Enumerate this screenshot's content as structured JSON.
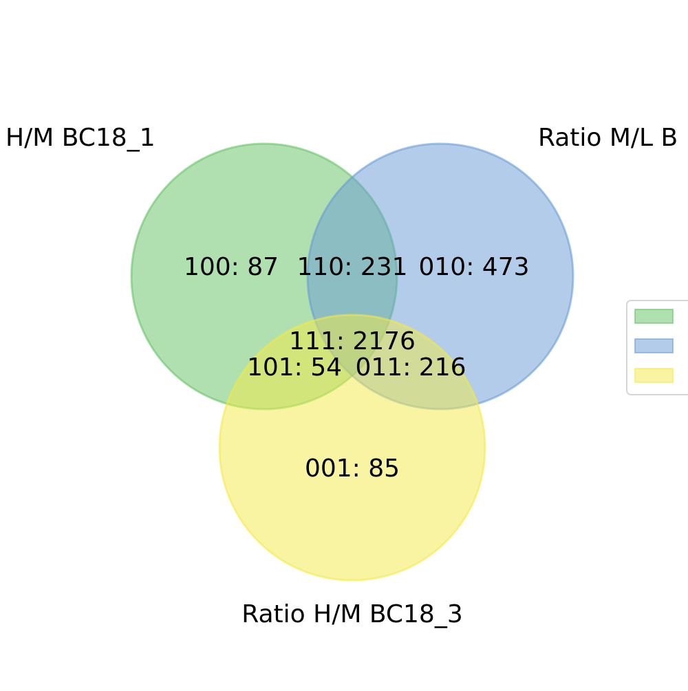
{
  "sets": [
    {
      "id": "set1",
      "label": "H/M BC18_1",
      "fill": "#61c161",
      "stroke": "#61c161"
    },
    {
      "id": "set2",
      "label": "Ratio M/L B",
      "fill": "#6599d6",
      "stroke": "#6599d6"
    },
    {
      "id": "set3",
      "label": "Ratio H/M BC18_3",
      "fill": "#f4ea46",
      "stroke": "#f4ea46"
    }
  ],
  "regions": [
    {
      "code": "100",
      "count": 87,
      "text": "100: 87"
    },
    {
      "code": "110",
      "count": 231,
      "text": "110: 231"
    },
    {
      "code": "010",
      "count": 473,
      "text": "010: 473"
    },
    {
      "code": "111",
      "count": 2176,
      "text": "111: 2176"
    },
    {
      "code": "101",
      "count": 54,
      "text": "101: 54"
    },
    {
      "code": "011",
      "count": 216,
      "text": "011: 216"
    },
    {
      "code": "001",
      "count": 85,
      "text": "001: 85"
    }
  ],
  "legend": {
    "position": "right",
    "entries": [
      {
        "set": "set1",
        "color": "#61c161"
      },
      {
        "set": "set2",
        "color": "#6599d6"
      },
      {
        "set": "set3",
        "color": "#f4ea46"
      }
    ]
  }
}
